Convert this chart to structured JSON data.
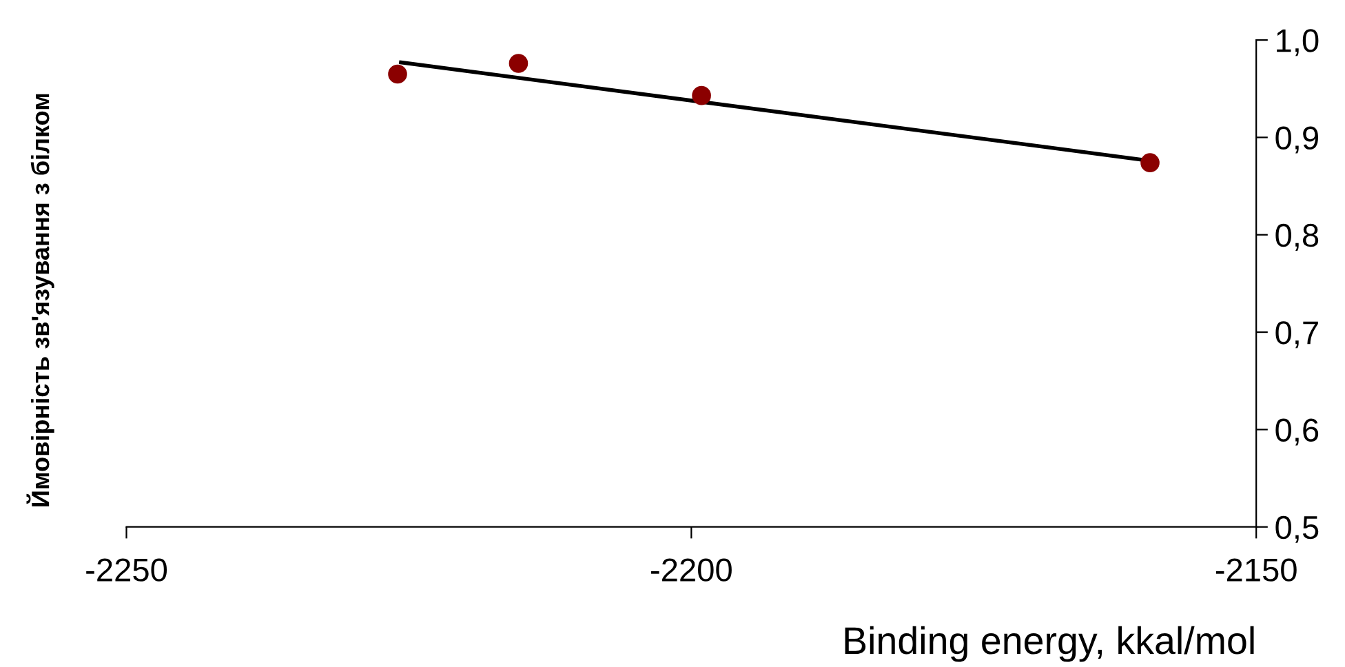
{
  "chart_data": {
    "type": "scatter",
    "xlabel": "Binding energy, kkal/mol",
    "ylabel": "Ймовірність зв'язування з білком",
    "series": [
      {
        "color": "#8b0000",
        "marker": "circle",
        "x": [
          -2226,
          -2215.3,
          -2199.1,
          -2159.4
        ],
        "values": [
          0.965,
          0.976,
          0.943,
          0.874
        ]
      },
      {
        "type": "line",
        "marker": "none",
        "color": "#000000",
        "x": [
          -2225.7,
          -2159.4
        ],
        "values": [
          0.977,
          0.876
        ]
      }
    ],
    "xlim": [
      -2250,
      -2150
    ],
    "xticks": [
      -2250,
      -2200,
      -2150
    ],
    "ylim": [
      0.5,
      1.0
    ],
    "yticks": [
      {
        "value": 0.5,
        "label": "0,5"
      },
      {
        "value": 0.6,
        "label": "0,6"
      },
      {
        "value": 0.7,
        "label": "0,7"
      },
      {
        "value": 0.8,
        "label": "0,8"
      },
      {
        "value": 0.9,
        "label": "0,9"
      },
      {
        "value": 1.0,
        "label": "1,0"
      }
    ],
    "grid": false,
    "legend": false
  }
}
